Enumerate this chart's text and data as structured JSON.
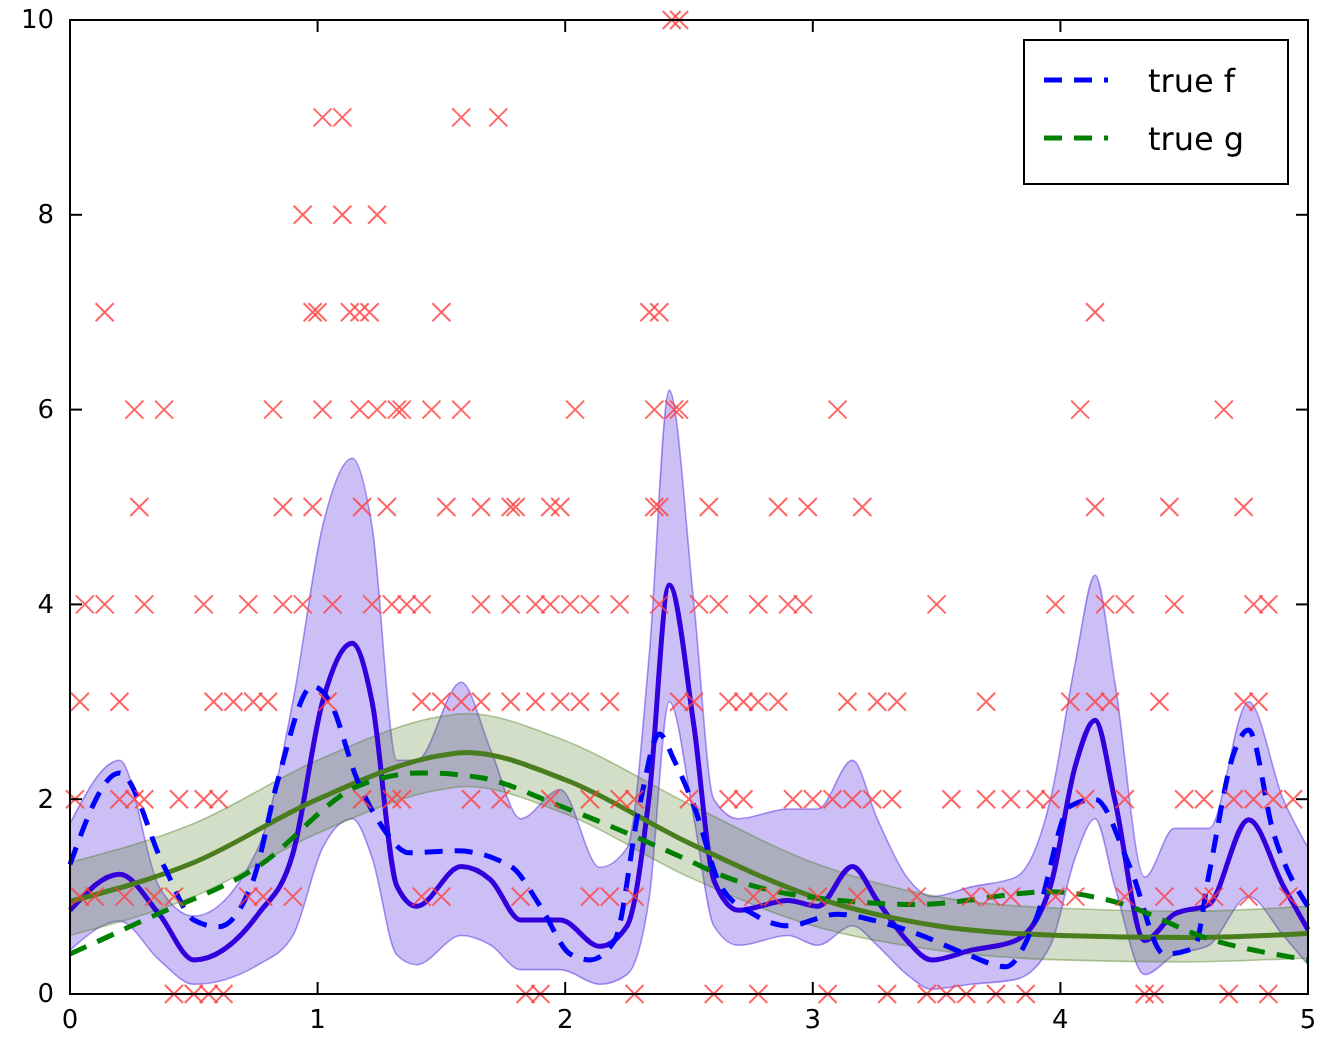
{
  "chart_data": {
    "type": "line",
    "xlim": [
      0,
      5
    ],
    "ylim": [
      0,
      10
    ],
    "xticks": [
      0,
      1,
      2,
      3,
      4,
      5
    ],
    "yticks": [
      0,
      2,
      4,
      6,
      8,
      10
    ],
    "grid": false,
    "legend": "top right",
    "series": [
      {
        "type": "scatter",
        "marker": "cross",
        "color": "#ff4040",
        "x": [
          2.43,
          2.46,
          1.02,
          1.1,
          1.58,
          1.73,
          0.94,
          1.1,
          1.24,
          0.14,
          0.98,
          1.0,
          1.13,
          1.17,
          1.21,
          1.5,
          2.34,
          2.38,
          4.14,
          0.26,
          0.38,
          0.82,
          1.02,
          1.17,
          1.24,
          1.32,
          1.34,
          1.46,
          1.58,
          2.04,
          2.36,
          2.44,
          2.46,
          3.1,
          4.08,
          4.66,
          0.28,
          0.86,
          0.98,
          1.18,
          1.28,
          1.52,
          1.66,
          1.78,
          1.8,
          1.94,
          1.98,
          2.36,
          2.38,
          2.58,
          2.86,
          2.98,
          3.2,
          4.14,
          4.44,
          4.74,
          0.06,
          0.14,
          0.3,
          0.54,
          0.72,
          0.86,
          0.94,
          1.06,
          1.22,
          1.3,
          1.36,
          1.42,
          1.66,
          1.78,
          1.88,
          1.94,
          2.02,
          2.1,
          2.22,
          2.38,
          2.54,
          2.62,
          2.78,
          2.9,
          2.96,
          3.5,
          3.98,
          4.18,
          4.26,
          4.46,
          4.78,
          4.84,
          0.04,
          0.2,
          0.58,
          0.66,
          0.74,
          0.8,
          1.04,
          1.42,
          1.5,
          1.58,
          1.66,
          1.78,
          1.88,
          1.98,
          2.06,
          2.18,
          2.46,
          2.52,
          2.66,
          2.72,
          2.78,
          2.86,
          3.14,
          3.26,
          3.34,
          3.7,
          4.04,
          4.14,
          4.2,
          4.4,
          4.74,
          4.8,
          0.02,
          0.2,
          0.26,
          0.3,
          0.44,
          0.54,
          0.6,
          1.18,
          1.3,
          1.34,
          1.62,
          1.74,
          1.94,
          2.1,
          2.22,
          2.28,
          2.5,
          2.66,
          2.72,
          2.92,
          3.0,
          3.08,
          3.16,
          3.24,
          3.32,
          3.56,
          3.7,
          3.8,
          3.9,
          3.96,
          4.1,
          4.26,
          4.5,
          4.58,
          4.7,
          4.78,
          4.86,
          4.94,
          0.04,
          0.1,
          0.22,
          0.34,
          0.42,
          0.72,
          0.78,
          0.9,
          1.42,
          1.5,
          1.82,
          2.1,
          2.18,
          2.28,
          2.76,
          2.84,
          3.02,
          3.18,
          3.42,
          3.64,
          3.72,
          3.8,
          3.98,
          4.06,
          4.26,
          4.42,
          4.58,
          4.62,
          4.76,
          4.92,
          0.42,
          0.5,
          0.56,
          0.62,
          1.84,
          1.9,
          2.28,
          2.6,
          2.78,
          3.06,
          3.3,
          3.46,
          3.54,
          3.62,
          3.74,
          3.86,
          4.34,
          4.38,
          4.68,
          4.84
        ],
        "values": [
          10,
          10,
          9,
          9,
          9,
          9,
          8,
          8,
          8,
          7,
          7,
          7,
          7,
          7,
          7,
          7,
          7,
          7,
          7,
          6,
          6,
          6,
          6,
          6,
          6,
          6,
          6,
          6,
          6,
          6,
          6,
          6,
          6,
          6,
          6,
          6,
          5,
          5,
          5,
          5,
          5,
          5,
          5,
          5,
          5,
          5,
          5,
          5,
          5,
          5,
          5,
          5,
          5,
          5,
          5,
          5,
          4,
          4,
          4,
          4,
          4,
          4,
          4,
          4,
          4,
          4,
          4,
          4,
          4,
          4,
          4,
          4,
          4,
          4,
          4,
          4,
          4,
          4,
          4,
          4,
          4,
          4,
          4,
          4,
          4,
          4,
          4,
          4,
          3,
          3,
          3,
          3,
          3,
          3,
          3,
          3,
          3,
          3,
          3,
          3,
          3,
          3,
          3,
          3,
          3,
          3,
          3,
          3,
          3,
          3,
          3,
          3,
          3,
          3,
          3,
          3,
          3,
          3,
          3,
          3,
          2,
          2,
          2,
          2,
          2,
          2,
          2,
          2,
          2,
          2,
          2,
          2,
          2,
          2,
          2,
          2,
          2,
          2,
          2,
          2,
          2,
          2,
          2,
          2,
          2,
          2,
          2,
          2,
          2,
          2,
          2,
          2,
          2,
          2,
          2,
          2,
          2,
          2,
          1,
          1,
          1,
          1,
          1,
          1,
          1,
          1,
          1,
          1,
          1,
          1,
          1,
          1,
          1,
          1,
          1,
          1,
          1,
          1,
          1,
          1,
          1,
          1,
          1,
          1,
          1,
          1,
          1,
          1,
          0,
          0,
          0,
          0,
          0,
          0,
          0,
          0,
          0,
          0,
          0,
          0,
          0,
          0,
          0,
          0,
          0,
          0,
          0,
          0
        ]
      },
      {
        "type": "line",
        "line_style": "solid",
        "color": "#3300dd",
        "x": [
          0,
          0.2,
          0.36,
          0.5,
          0.76,
          0.9,
          1.02,
          1.14,
          1.22,
          1.32,
          1.4,
          1.58,
          1.7,
          1.82,
          1.98,
          2.14,
          2.25,
          2.34,
          2.42,
          2.52,
          2.6,
          2.7,
          2.9,
          3.02,
          3.16,
          3.26,
          3.38,
          3.48,
          3.64,
          3.82,
          3.96,
          4.06,
          4.14,
          4.22,
          4.34,
          4.46,
          4.6,
          4.76,
          4.9,
          5.0
        ],
        "values": [
          0.86,
          1.23,
          0.82,
          0.35,
          0.82,
          1.44,
          3.0,
          3.6,
          3.0,
          1.11,
          0.9,
          1.31,
          1.17,
          0.76,
          0.76,
          0.49,
          0.7,
          2.05,
          4.2,
          2.75,
          1.17,
          0.86,
          0.96,
          0.9,
          1.31,
          0.96,
          0.55,
          0.35,
          0.45,
          0.55,
          1.11,
          2.34,
          2.81,
          1.99,
          0.55,
          0.82,
          0.92,
          1.79,
          1.11,
          0.66
        ],
        "lower": [
          0.45,
          0.75,
          0.35,
          0.1,
          0.3,
          0.6,
          1.5,
          1.8,
          1.4,
          0.4,
          0.3,
          0.6,
          0.5,
          0.25,
          0.25,
          0.1,
          0.2,
          1.0,
          3.0,
          1.8,
          0.7,
          0.5,
          0.6,
          0.5,
          0.7,
          0.5,
          0.2,
          0.05,
          0.1,
          0.15,
          0.5,
          1.4,
          1.8,
          1.1,
          0.2,
          0.4,
          0.5,
          1.0,
          0.6,
          0.3
        ],
        "upper": [
          1.75,
          2.4,
          1.1,
          0.8,
          1.5,
          3.0,
          4.8,
          5.5,
          4.8,
          2.4,
          2.4,
          3.2,
          2.5,
          1.8,
          2.1,
          1.3,
          1.5,
          3.5,
          6.2,
          4.0,
          2.0,
          1.8,
          1.9,
          1.9,
          2.4,
          1.8,
          1.2,
          1.0,
          1.1,
          1.2,
          2.0,
          3.4,
          4.3,
          3.2,
          1.2,
          1.7,
          1.7,
          3.0,
          2.0,
          1.5
        ]
      },
      {
        "type": "line",
        "line_style": "solid",
        "color": "#4a7d1e",
        "x": [
          0,
          0.5,
          1.0,
          1.5,
          1.6,
          2.0,
          2.5,
          3.0,
          3.5,
          4.0,
          4.5,
          5.0
        ],
        "values": [
          0.95,
          1.35,
          2.0,
          2.45,
          2.48,
          2.2,
          1.55,
          1.0,
          0.7,
          0.6,
          0.58,
          0.62
        ],
        "lower": [
          0.6,
          1.0,
          1.65,
          2.1,
          2.13,
          1.85,
          1.2,
          0.7,
          0.45,
          0.35,
          0.33,
          0.37
        ],
        "upper": [
          1.35,
          1.75,
          2.4,
          2.85,
          2.88,
          2.6,
          1.95,
          1.35,
          1.0,
          0.88,
          0.85,
          0.9
        ]
      },
      {
        "type": "line",
        "name": "true f",
        "line_style": "dashed",
        "color": "#0000ff",
        "x": [
          0,
          0.2,
          0.38,
          0.5,
          0.6,
          0.74,
          0.84,
          0.98,
          1.05,
          1.16,
          1.26,
          1.37,
          1.56,
          1.78,
          1.9,
          2.02,
          2.1,
          2.2,
          2.3,
          2.38,
          2.44,
          2.52,
          2.63,
          2.76,
          2.9,
          3.1,
          3.24,
          3.42,
          3.62,
          3.78,
          3.9,
          4.04,
          4.14,
          4.28,
          4.42,
          4.54,
          4.6,
          4.7,
          4.76,
          4.86,
          5.0
        ],
        "values": [
          1.33,
          2.27,
          1.31,
          0.76,
          0.69,
          1.17,
          2.2,
          3.16,
          3.0,
          2.2,
          1.72,
          1.45,
          1.47,
          1.31,
          0.9,
          0.41,
          0.35,
          0.55,
          1.93,
          2.67,
          2.4,
          1.93,
          1.1,
          0.82,
          0.7,
          0.82,
          0.76,
          0.62,
          0.41,
          0.28,
          0.76,
          1.93,
          2.0,
          1.31,
          0.41,
          0.47,
          1.23,
          2.47,
          2.71,
          1.66,
          0.9
        ]
      },
      {
        "type": "line",
        "name": "true g",
        "line_style": "dashed",
        "color": "#008000",
        "x": [
          0,
          0.3,
          0.76,
          1.16,
          1.42,
          1.66,
          1.98,
          2.5,
          2.62,
          2.9,
          3.42,
          3.96,
          4.2,
          4.62,
          5.0
        ],
        "values": [
          0.41,
          0.76,
          1.31,
          2.13,
          2.27,
          2.22,
          1.93,
          1.37,
          1.23,
          1.03,
          0.92,
          1.05,
          0.96,
          0.55,
          0.35
        ]
      }
    ]
  }
}
